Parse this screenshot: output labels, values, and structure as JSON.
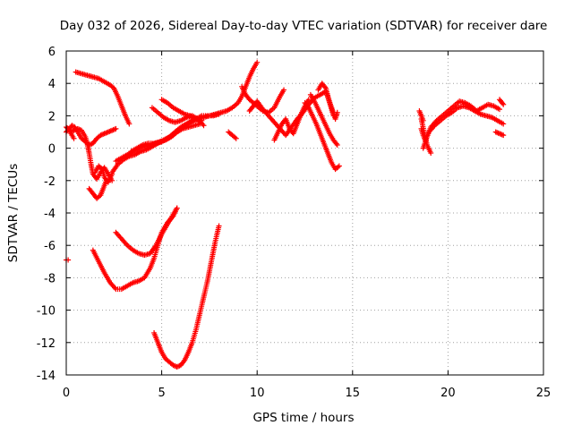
{
  "chart_data": {
    "type": "scatter",
    "title": "Day 032 of 2026, Sidereal Day-to-day VTEC variation (SDTVAR) for receiver dare",
    "xlabel": "GPS time / hours",
    "ylabel": "SDTVAR / TECUs",
    "xlim": [
      0,
      25
    ],
    "ylim": [
      -14,
      6
    ],
    "xticks": [
      0,
      5,
      10,
      15,
      20,
      25
    ],
    "yticks": [
      -14,
      -12,
      -10,
      -8,
      -6,
      -4,
      -2,
      0,
      2,
      4,
      6
    ],
    "grid": true,
    "marker": "+",
    "color": "#ff0000",
    "series": [
      {
        "name": "s1",
        "x": [
          -0.1,
          0.1
        ],
        "y": [
          -6.9,
          -6.9
        ]
      },
      {
        "name": "s2",
        "x": [
          0.0,
          0.15,
          0.3,
          0.45,
          0.6,
          0.8,
          1.0,
          1.2,
          1.4,
          1.6,
          1.8,
          2.0,
          2.2,
          2.4,
          2.6
        ],
        "y": [
          1.0,
          1.2,
          1.4,
          1.3,
          1.0,
          0.6,
          0.4,
          0.2,
          0.3,
          0.6,
          0.8,
          0.9,
          1.0,
          1.1,
          1.2
        ]
      },
      {
        "name": "s3",
        "x": [
          0.0,
          0.1,
          0.2,
          0.3,
          0.4
        ],
        "y": [
          1.3,
          1.2,
          1.0,
          0.8,
          0.6
        ]
      },
      {
        "name": "s4",
        "x": [
          0.2,
          0.4,
          0.6,
          0.8,
          1.0,
          1.1,
          1.2,
          1.3,
          1.4,
          1.6,
          1.8,
          2.0,
          2.2,
          2.4
        ],
        "y": [
          1.0,
          1.1,
          1.2,
          1.1,
          0.7,
          0.3,
          -0.3,
          -1.0,
          -1.6,
          -1.9,
          -1.5,
          -1.2,
          -1.6,
          -2.0
        ]
      },
      {
        "name": "s5",
        "x": [
          1.2,
          1.4,
          1.6,
          1.8,
          2.0,
          2.1
        ],
        "y": [
          -2.5,
          -2.8,
          -3.1,
          -2.9,
          -2.3,
          -2.0
        ]
      },
      {
        "name": "s6",
        "x": [
          1.5,
          1.7,
          1.9,
          2.0,
          2.2,
          2.4
        ],
        "y": [
          -1.5,
          -1.1,
          -1.3,
          -1.8,
          -2.1,
          -1.6
        ]
      },
      {
        "name": "s7",
        "x": [
          0.5,
          0.8,
          1.1,
          1.4,
          1.7,
          2.0,
          2.3,
          2.5,
          2.7,
          2.9,
          3.1,
          3.3
        ],
        "y": [
          4.7,
          4.6,
          4.5,
          4.4,
          4.3,
          4.1,
          3.9,
          3.7,
          3.2,
          2.6,
          2.0,
          1.5
        ]
      },
      {
        "name": "s8",
        "x": [
          2.4,
          2.7,
          3.0,
          3.3,
          3.6,
          3.9,
          4.2,
          4.5,
          4.8,
          5.1,
          5.4,
          5.7,
          6.0,
          6.3,
          6.6,
          6.9,
          7.2,
          7.5,
          7.8,
          8.1,
          8.4,
          8.7,
          9.0,
          9.2,
          9.4,
          9.6,
          9.8,
          10.0
        ],
        "y": [
          -1.5,
          -1.0,
          -0.7,
          -0.5,
          -0.4,
          -0.2,
          -0.1,
          0.1,
          0.3,
          0.5,
          0.7,
          1.0,
          1.3,
          1.5,
          1.7,
          1.8,
          1.9,
          2.0,
          2.1,
          2.2,
          2.3,
          2.5,
          2.8,
          3.2,
          3.8,
          4.4,
          4.9,
          5.3
        ]
      },
      {
        "name": "s9",
        "x": [
          2.6,
          2.9,
          3.2,
          3.5,
          3.8,
          4.1,
          4.4,
          4.7,
          5.0,
          5.3,
          5.6,
          5.9,
          6.2,
          6.5,
          6.8,
          7.1,
          7.4,
          7.7,
          8.0
        ],
        "y": [
          -0.8,
          -0.6,
          -0.4,
          -0.2,
          0.0,
          0.1,
          0.2,
          0.3,
          0.4,
          0.6,
          0.8,
          1.1,
          1.4,
          1.6,
          1.8,
          2.0,
          2.0,
          2.0,
          2.1
        ]
      },
      {
        "name": "s10",
        "x": [
          3.4,
          3.7,
          4.0,
          4.3,
          4.6,
          4.9,
          5.2,
          5.5,
          5.8,
          6.1,
          6.4,
          6.7,
          7.0
        ],
        "y": [
          -0.2,
          0.0,
          0.2,
          0.3,
          0.3,
          0.4,
          0.5,
          0.7,
          1.0,
          1.2,
          1.3,
          1.4,
          1.5
        ]
      },
      {
        "name": "s11",
        "x": [
          4.5,
          4.8,
          5.1,
          5.4,
          5.7,
          6.0,
          6.3,
          6.6,
          6.9,
          7.2
        ],
        "y": [
          2.5,
          2.2,
          1.9,
          1.7,
          1.6,
          1.7,
          1.9,
          2.0,
          1.8,
          1.4
        ]
      },
      {
        "name": "s12",
        "x": [
          5.0,
          5.3,
          5.6,
          5.9,
          6.2,
          6.5,
          6.8,
          7.1
        ],
        "y": [
          3.0,
          2.8,
          2.5,
          2.3,
          2.1,
          2.0,
          1.8,
          1.7
        ]
      },
      {
        "name": "s13",
        "x": [
          8.5,
          8.7,
          8.9
        ],
        "y": [
          1.0,
          0.8,
          0.6
        ]
      },
      {
        "name": "s14",
        "x": [
          9.2,
          9.4,
          9.6,
          9.8,
          10.0,
          10.3,
          10.6,
          10.9,
          11.2,
          11.4
        ],
        "y": [
          3.8,
          3.3,
          3.0,
          2.8,
          2.6,
          2.3,
          2.2,
          2.5,
          3.2,
          3.6
        ]
      },
      {
        "name": "s15",
        "x": [
          9.6,
          9.8,
          10.0,
          10.3,
          10.6,
          10.9,
          11.2,
          11.5,
          11.8,
          12.1,
          12.4,
          12.7,
          13.0,
          13.3,
          13.6,
          13.9,
          14.1,
          14.2
        ],
        "y": [
          2.3,
          2.6,
          2.9,
          2.4,
          2.0,
          1.6,
          1.2,
          0.8,
          1.3,
          1.8,
          2.2,
          2.7,
          3.1,
          3.3,
          3.5,
          2.5,
          1.8,
          2.2
        ]
      },
      {
        "name": "s16",
        "x": [
          10.9,
          11.1,
          11.3,
          11.5,
          11.7,
          11.9,
          12.1,
          12.3,
          12.5,
          12.7
        ],
        "y": [
          0.5,
          1.0,
          1.5,
          1.8,
          1.2,
          0.9,
          1.5,
          2.1,
          2.6,
          3.0
        ]
      },
      {
        "name": "s17",
        "x": [
          12.5,
          12.7,
          12.9,
          13.1,
          13.3,
          13.5,
          13.7,
          13.9,
          14.1,
          14.3
        ],
        "y": [
          2.8,
          2.5,
          2.0,
          1.5,
          0.9,
          0.3,
          -0.3,
          -0.9,
          -1.3,
          -1.1
        ]
      },
      {
        "name": "s18",
        "x": [
          12.8,
          13.0,
          13.2,
          13.4,
          13.6,
          13.8,
          14.0,
          14.2
        ],
        "y": [
          3.3,
          2.9,
          2.4,
          1.9,
          1.4,
          0.9,
          0.5,
          0.2
        ]
      },
      {
        "name": "s19",
        "x": [
          13.2,
          13.4,
          13.6,
          13.8,
          14.0
        ],
        "y": [
          3.6,
          4.0,
          3.7,
          2.8,
          2.0
        ]
      },
      {
        "name": "s20",
        "x": [
          18.6,
          18.7,
          18.8,
          19.0,
          19.3,
          19.6,
          19.9,
          20.2,
          20.5,
          20.8,
          21.1,
          21.4,
          21.7,
          22.0,
          22.3,
          22.6,
          22.9
        ],
        "y": [
          1.2,
          0.8,
          0.5,
          1.0,
          1.4,
          1.7,
          2.0,
          2.2,
          2.5,
          2.6,
          2.5,
          2.3,
          2.1,
          2.0,
          1.9,
          1.7,
          1.5
        ]
      },
      {
        "name": "s21",
        "x": [
          18.7,
          18.9,
          19.1,
          19.4,
          19.7,
          20.0,
          20.3,
          20.6,
          20.9,
          21.2,
          21.5,
          21.8,
          22.1,
          22.4,
          22.7
        ],
        "y": [
          0.0,
          0.7,
          1.3,
          1.7,
          2.0,
          2.3,
          2.6,
          2.9,
          2.8,
          2.6,
          2.3,
          2.5,
          2.7,
          2.6,
          2.4
        ]
      },
      {
        "name": "s22",
        "x": [
          18.6,
          18.75,
          18.9,
          19.1
        ],
        "y": [
          1.8,
          1.0,
          0.2,
          -0.3
        ]
      },
      {
        "name": "s23",
        "x": [
          18.5,
          18.6,
          18.7
        ],
        "y": [
          2.3,
          2.0,
          1.7
        ]
      },
      {
        "name": "s24",
        "x": [
          22.5,
          22.7,
          22.9
        ],
        "y": [
          1.0,
          0.9,
          0.8
        ]
      },
      {
        "name": "s25",
        "x": [
          22.7,
          22.9
        ],
        "y": [
          3.0,
          2.7
        ]
      },
      {
        "name": "s26",
        "x": [
          1.4,
          1.7,
          2.0,
          2.3,
          2.6,
          2.9,
          3.2,
          3.5,
          3.8,
          4.1,
          4.4,
          4.6,
          4.8,
          5.0,
          5.3,
          5.6,
          5.8
        ],
        "y": [
          -6.3,
          -7.0,
          -7.7,
          -8.3,
          -8.7,
          -8.7,
          -8.5,
          -8.3,
          -8.2,
          -8.0,
          -7.4,
          -6.8,
          -6.0,
          -5.2,
          -4.6,
          -4.2,
          -3.7
        ]
      },
      {
        "name": "s27",
        "x": [
          2.6,
          2.9,
          3.2,
          3.5,
          3.8,
          4.1,
          4.4,
          4.7,
          5.0,
          5.3,
          5.6,
          5.8
        ],
        "y": [
          -5.2,
          -5.6,
          -6.0,
          -6.3,
          -6.5,
          -6.6,
          -6.5,
          -6.0,
          -5.3,
          -4.7,
          -4.1,
          -3.7
        ]
      },
      {
        "name": "s28",
        "x": [
          4.6,
          4.8,
          5.0,
          5.2,
          5.4,
          5.6,
          5.8,
          6.0,
          6.2,
          6.4,
          6.6,
          6.8,
          7.0,
          7.2,
          7.4,
          7.6,
          7.8,
          8.0
        ],
        "y": [
          -11.4,
          -12.0,
          -12.6,
          -13.0,
          -13.2,
          -13.4,
          -13.5,
          -13.4,
          -13.1,
          -12.6,
          -12.0,
          -11.2,
          -10.2,
          -9.2,
          -8.2,
          -7.0,
          -5.8,
          -4.8
        ]
      }
    ]
  }
}
